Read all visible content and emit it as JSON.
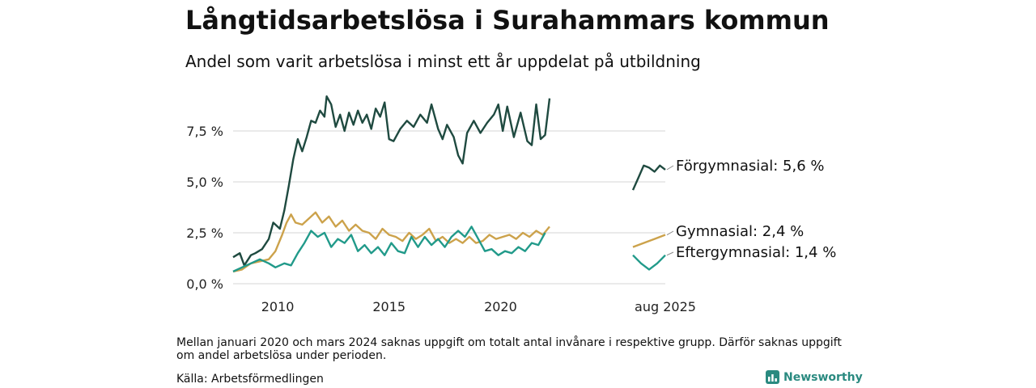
{
  "header": {
    "title": "Långtidsarbetslösa i Surahammars kommun",
    "subtitle": "Andel som varit arbetslösa i minst ett år uppdelat på utbildning"
  },
  "footer": {
    "note": "Mellan januari 2020 och mars 2024 saknas uppgift om totalt antal invånare i respektive grupp. Därför saknas uppgift om andel arbetslösa under perioden.",
    "source": "Källa: Arbetsförmedlingen",
    "brand": "Newsworthy"
  },
  "chart_data": {
    "type": "line",
    "x_unit": "year",
    "ylim": [
      0,
      9.5
    ],
    "y_ticks": [
      {
        "value": 0,
        "label": "0,0 %"
      },
      {
        "value": 2.5,
        "label": "2,5 %"
      },
      {
        "value": 5,
        "label": "5,0 %"
      },
      {
        "value": 7.5,
        "label": "7,5 %"
      }
    ],
    "x_ticks": [
      {
        "value": 2010,
        "label": "2010"
      },
      {
        "value": 2015,
        "label": "2015"
      },
      {
        "value": 2020,
        "label": "2020"
      },
      {
        "value": 2025.6,
        "label": "aug 2025"
      }
    ],
    "grid": "horizontal",
    "series": [
      {
        "name": "Förgymnasial",
        "end_label": "Förgymnasial: 5,6 %",
        "color": "#1f4a40",
        "segments": [
          [
            [
              2008.0,
              1.3
            ],
            [
              2008.3,
              1.5
            ],
            [
              2008.5,
              0.9
            ],
            [
              2008.8,
              1.4
            ],
            [
              2009.0,
              1.5
            ],
            [
              2009.3,
              1.7
            ],
            [
              2009.6,
              2.2
            ],
            [
              2009.8,
              3.0
            ],
            [
              2010.1,
              2.7
            ],
            [
              2010.3,
              3.6
            ],
            [
              2010.5,
              4.8
            ],
            [
              2010.7,
              6.1
            ],
            [
              2010.9,
              7.1
            ],
            [
              2011.1,
              6.5
            ],
            [
              2011.3,
              7.2
            ],
            [
              2011.5,
              8.0
            ],
            [
              2011.7,
              7.9
            ],
            [
              2011.9,
              8.5
            ],
            [
              2012.1,
              8.2
            ],
            [
              2012.2,
              9.2
            ],
            [
              2012.4,
              8.8
            ],
            [
              2012.6,
              7.7
            ],
            [
              2012.8,
              8.3
            ],
            [
              2013.0,
              7.5
            ],
            [
              2013.2,
              8.4
            ],
            [
              2013.4,
              7.8
            ],
            [
              2013.6,
              8.5
            ],
            [
              2013.8,
              7.9
            ],
            [
              2014.0,
              8.3
            ],
            [
              2014.2,
              7.6
            ],
            [
              2014.4,
              8.6
            ],
            [
              2014.6,
              8.2
            ],
            [
              2014.8,
              8.9
            ],
            [
              2015.0,
              7.1
            ],
            [
              2015.2,
              7.0
            ],
            [
              2015.5,
              7.6
            ],
            [
              2015.8,
              8.0
            ],
            [
              2016.1,
              7.7
            ],
            [
              2016.4,
              8.3
            ],
            [
              2016.7,
              7.9
            ],
            [
              2016.9,
              8.8
            ],
            [
              2017.2,
              7.6
            ],
            [
              2017.4,
              7.1
            ],
            [
              2017.6,
              7.8
            ],
            [
              2017.9,
              7.2
            ],
            [
              2018.1,
              6.3
            ],
            [
              2018.3,
              5.9
            ],
            [
              2018.5,
              7.4
            ],
            [
              2018.8,
              8.0
            ],
            [
              2019.1,
              7.4
            ],
            [
              2019.4,
              7.9
            ],
            [
              2019.7,
              8.3
            ],
            [
              2019.9,
              8.8
            ],
            [
              2020.1,
              7.5
            ],
            [
              2020.3,
              8.7
            ],
            [
              2020.6,
              7.2
            ],
            [
              2020.9,
              8.4
            ],
            [
              2021.2,
              7.0
            ],
            [
              2021.4,
              6.8
            ],
            [
              2021.6,
              8.8
            ],
            [
              2021.8,
              7.1
            ],
            [
              2022.0,
              7.3
            ],
            [
              2022.2,
              9.1
            ]
          ]
        ],
        "tail": [
          [
            2025.0,
            4.6
          ],
          [
            2025.1,
            5.2
          ],
          [
            2025.2,
            5.8
          ],
          [
            2025.3,
            5.7
          ],
          [
            2025.4,
            5.5
          ],
          [
            2025.5,
            5.8
          ],
          [
            2025.6,
            5.6
          ]
        ]
      },
      {
        "name": "Gymnasial",
        "end_label": "Gymnasial: 2,4 %",
        "color": "#cca24b",
        "segments": [
          [
            [
              2008.0,
              0.6
            ],
            [
              2008.4,
              0.7
            ],
            [
              2008.8,
              1.0
            ],
            [
              2009.2,
              1.1
            ],
            [
              2009.6,
              1.2
            ],
            [
              2009.9,
              1.6
            ],
            [
              2010.2,
              2.4
            ],
            [
              2010.4,
              3.0
            ],
            [
              2010.6,
              3.4
            ],
            [
              2010.8,
              3.0
            ],
            [
              2011.1,
              2.9
            ],
            [
              2011.4,
              3.2
            ],
            [
              2011.7,
              3.5
            ],
            [
              2012.0,
              3.0
            ],
            [
              2012.3,
              3.3
            ],
            [
              2012.6,
              2.8
            ],
            [
              2012.9,
              3.1
            ],
            [
              2013.2,
              2.6
            ],
            [
              2013.5,
              2.9
            ],
            [
              2013.8,
              2.6
            ],
            [
              2014.1,
              2.5
            ],
            [
              2014.4,
              2.2
            ],
            [
              2014.7,
              2.7
            ],
            [
              2015.0,
              2.4
            ],
            [
              2015.3,
              2.3
            ],
            [
              2015.6,
              2.1
            ],
            [
              2015.9,
              2.5
            ],
            [
              2016.2,
              2.2
            ],
            [
              2016.5,
              2.4
            ],
            [
              2016.8,
              2.7
            ],
            [
              2017.1,
              2.1
            ],
            [
              2017.4,
              2.3
            ],
            [
              2017.7,
              2.0
            ],
            [
              2018.0,
              2.2
            ],
            [
              2018.3,
              2.0
            ],
            [
              2018.6,
              2.3
            ],
            [
              2018.9,
              2.0
            ],
            [
              2019.2,
              2.1
            ],
            [
              2019.5,
              2.4
            ],
            [
              2019.8,
              2.2
            ],
            [
              2020.1,
              2.3
            ],
            [
              2020.4,
              2.4
            ],
            [
              2020.7,
              2.2
            ],
            [
              2021.0,
              2.5
            ],
            [
              2021.3,
              2.3
            ],
            [
              2021.6,
              2.6
            ],
            [
              2021.9,
              2.4
            ],
            [
              2022.2,
              2.8
            ]
          ]
        ],
        "tail": [
          [
            2025.0,
            1.8
          ],
          [
            2025.2,
            2.0
          ],
          [
            2025.4,
            2.2
          ],
          [
            2025.6,
            2.4
          ]
        ]
      },
      {
        "name": "Eftergymnasial",
        "end_label": "Eftergymnasial: 1,4 %",
        "color": "#219a8a",
        "segments": [
          [
            [
              2008.0,
              0.6
            ],
            [
              2008.4,
              0.8
            ],
            [
              2008.8,
              1.0
            ],
            [
              2009.2,
              1.2
            ],
            [
              2009.6,
              1.0
            ],
            [
              2009.9,
              0.8
            ],
            [
              2010.3,
              1.0
            ],
            [
              2010.6,
              0.9
            ],
            [
              2010.9,
              1.5
            ],
            [
              2011.2,
              2.0
            ],
            [
              2011.5,
              2.6
            ],
            [
              2011.8,
              2.3
            ],
            [
              2012.1,
              2.5
            ],
            [
              2012.4,
              1.8
            ],
            [
              2012.7,
              2.2
            ],
            [
              2013.0,
              2.0
            ],
            [
              2013.3,
              2.4
            ],
            [
              2013.6,
              1.6
            ],
            [
              2013.9,
              1.9
            ],
            [
              2014.2,
              1.5
            ],
            [
              2014.5,
              1.8
            ],
            [
              2014.8,
              1.4
            ],
            [
              2015.1,
              2.0
            ],
            [
              2015.4,
              1.6
            ],
            [
              2015.7,
              1.5
            ],
            [
              2016.0,
              2.3
            ],
            [
              2016.3,
              1.8
            ],
            [
              2016.6,
              2.3
            ],
            [
              2016.9,
              1.9
            ],
            [
              2017.2,
              2.2
            ],
            [
              2017.5,
              1.8
            ],
            [
              2017.8,
              2.3
            ],
            [
              2018.1,
              2.6
            ],
            [
              2018.4,
              2.3
            ],
            [
              2018.7,
              2.8
            ],
            [
              2019.0,
              2.2
            ],
            [
              2019.3,
              1.6
            ],
            [
              2019.6,
              1.7
            ],
            [
              2019.9,
              1.4
            ],
            [
              2020.2,
              1.6
            ],
            [
              2020.5,
              1.5
            ],
            [
              2020.8,
              1.8
            ],
            [
              2021.1,
              1.6
            ],
            [
              2021.4,
              2.0
            ],
            [
              2021.7,
              1.9
            ],
            [
              2022.0,
              2.5
            ]
          ]
        ],
        "tail": [
          [
            2025.0,
            1.4
          ],
          [
            2025.15,
            1.0
          ],
          [
            2025.3,
            0.7
          ],
          [
            2025.45,
            1.0
          ],
          [
            2025.6,
            1.4
          ]
        ]
      }
    ]
  }
}
